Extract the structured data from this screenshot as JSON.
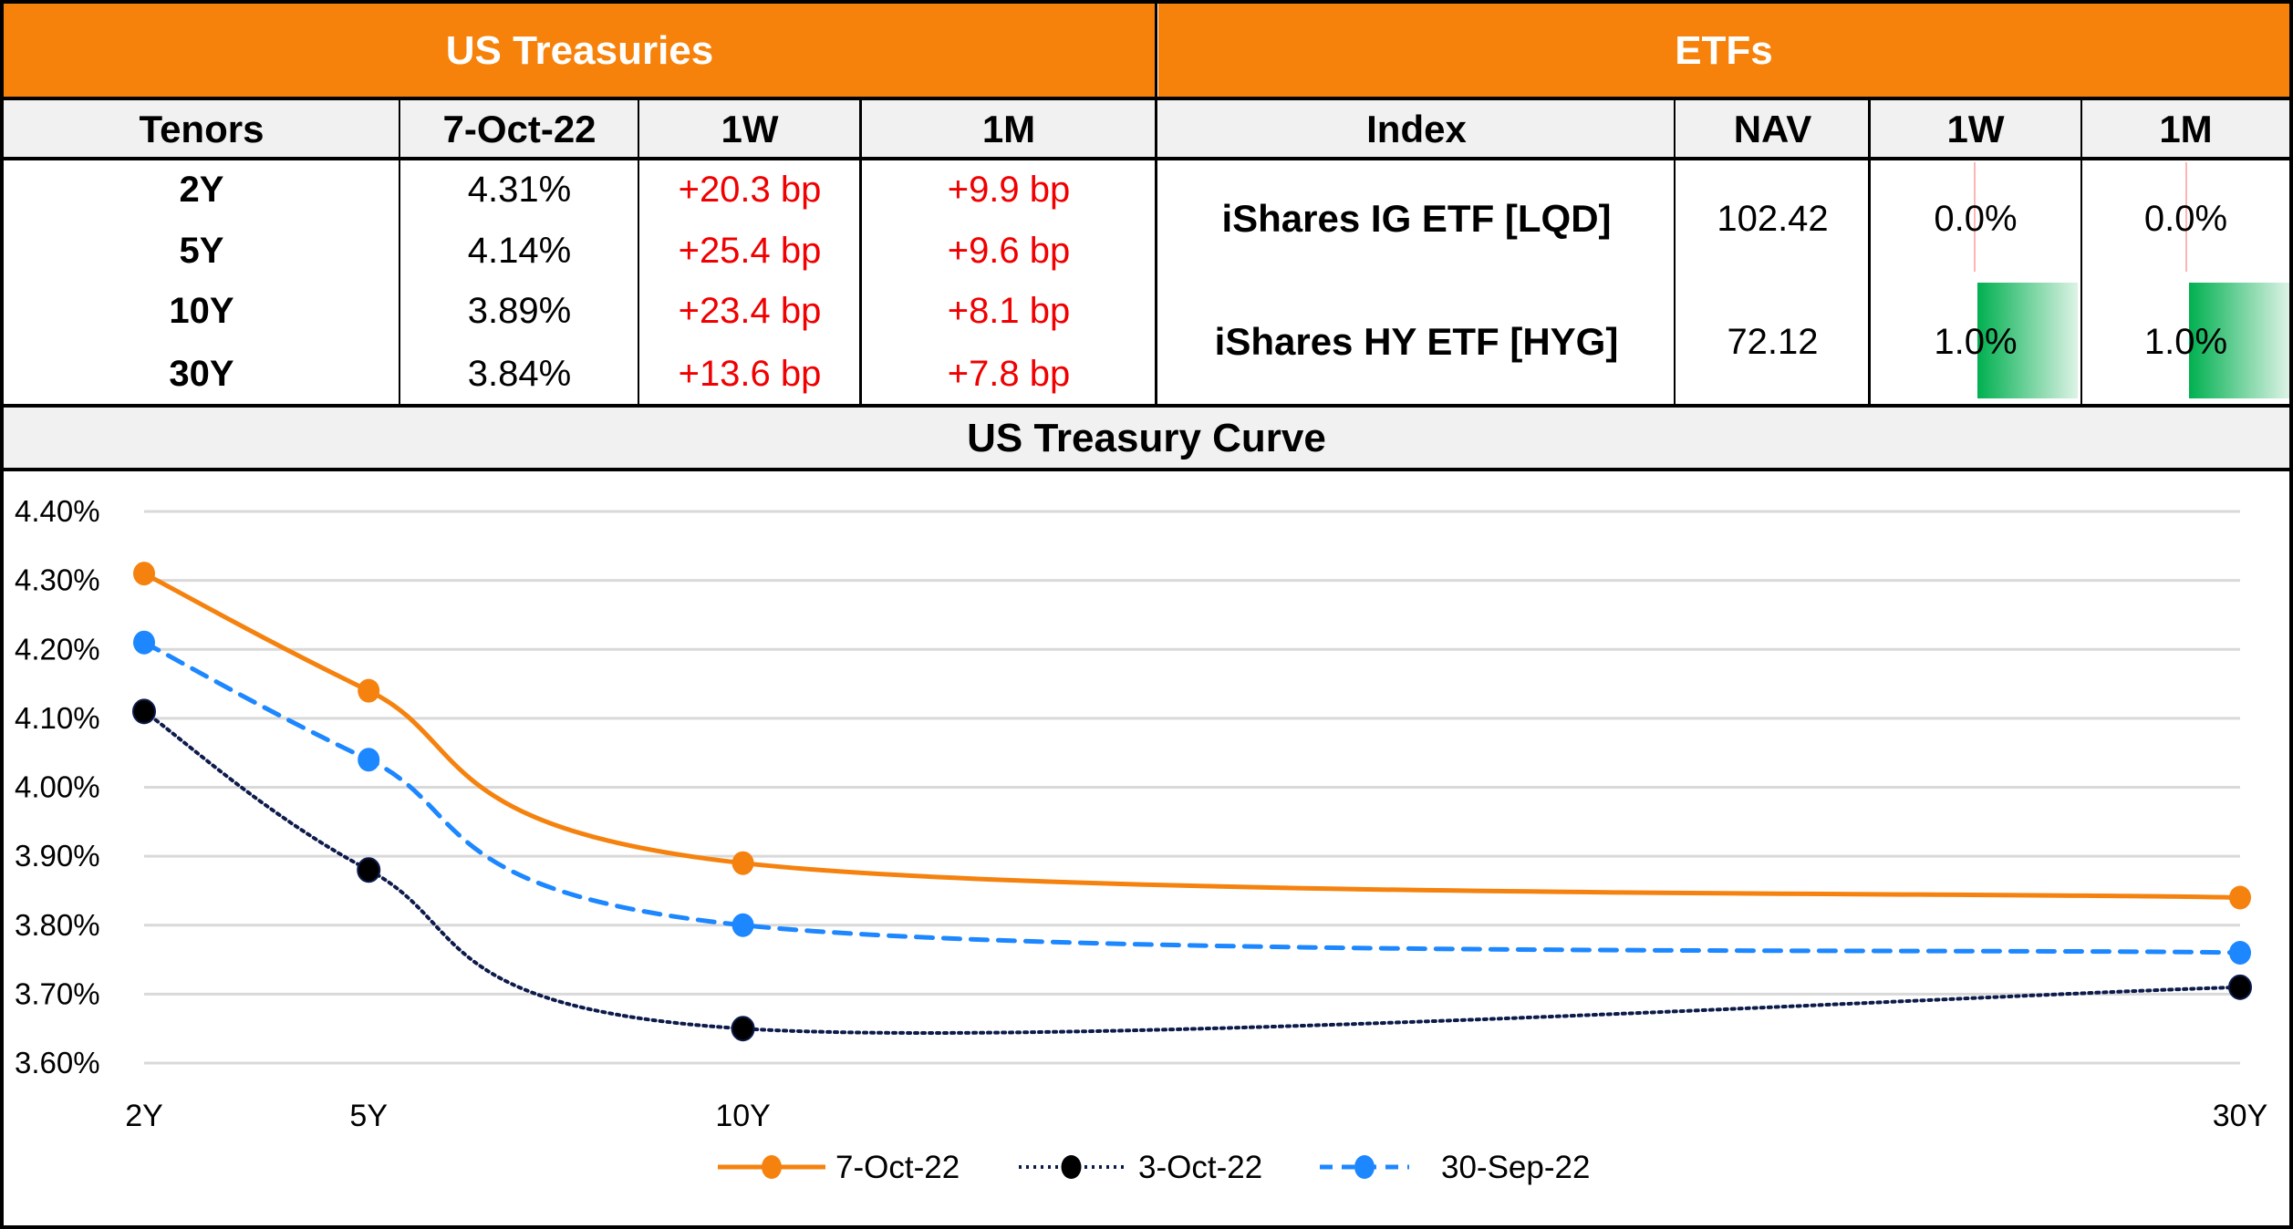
{
  "treasuries": {
    "title": "US Treasuries",
    "headers": [
      "Tenors",
      "7-Oct-22",
      "1W",
      "1M"
    ],
    "rows": [
      {
        "tenor": "2Y",
        "yield": "4.31%",
        "w1": "+20.3 bp",
        "m1": "+9.9 bp"
      },
      {
        "tenor": "5Y",
        "yield": "4.14%",
        "w1": "+25.4 bp",
        "m1": "+9.6 bp"
      },
      {
        "tenor": "10Y",
        "yield": "3.89%",
        "w1": "+23.4 bp",
        "m1": "+8.1 bp"
      },
      {
        "tenor": "30Y",
        "yield": "3.84%",
        "w1": "+13.6 bp",
        "m1": "+7.8 bp"
      }
    ]
  },
  "etfs": {
    "title": "ETFs",
    "headers": [
      "Index",
      "NAV",
      "1W",
      "1M"
    ],
    "rows": [
      {
        "index": "iShares IG ETF [LQD]",
        "nav": "102.42",
        "w1": "0.0%",
        "m1": "0.0%",
        "w1_value": 0.0,
        "m1_value": 0.0
      },
      {
        "index": "iShares HY ETF [HYG]",
        "nav": "72.12",
        "w1": "1.0%",
        "m1": "1.0%",
        "w1_value": 1.0,
        "m1_value": 1.0
      }
    ],
    "databar_max": 1.0,
    "colors": {
      "positive_bar": "#00B050",
      "zero_axis": "#FF9999"
    }
  },
  "colors": {
    "header_orange": "#F7820B",
    "header_gray": "#F1F1F1",
    "negative_change": "#F00000"
  },
  "chart_data": {
    "type": "line",
    "title": "US Treasury Curve",
    "x": [
      2,
      5,
      10,
      30
    ],
    "x_tick_labels": [
      "2Y",
      "5Y",
      "10Y",
      "30Y"
    ],
    "xlabel": "",
    "ylabel": "",
    "ylim": [
      3.6,
      4.4
    ],
    "y_ticks": [
      4.4,
      4.3,
      4.2,
      4.1,
      4.0,
      3.9,
      3.8,
      3.7,
      3.6
    ],
    "y_tick_labels": [
      "4.40%",
      "4.30%",
      "4.20%",
      "4.10%",
      "4.00%",
      "3.90%",
      "3.80%",
      "3.70%",
      "3.60%"
    ],
    "grid": "horizontal",
    "legend_position": "bottom",
    "series": [
      {
        "name": "7-Oct-22",
        "values": [
          4.31,
          4.14,
          3.89,
          3.84
        ],
        "color": "#F5820E",
        "style": "solid"
      },
      {
        "name": "3-Oct-22",
        "values": [
          4.11,
          3.88,
          3.65,
          3.71
        ],
        "color": "#0D1B4B",
        "style": "dotted"
      },
      {
        "name": "30-Sep-22",
        "values": [
          4.21,
          4.04,
          3.8,
          3.76
        ],
        "color": "#1C87FF",
        "style": "dashed"
      }
    ]
  }
}
